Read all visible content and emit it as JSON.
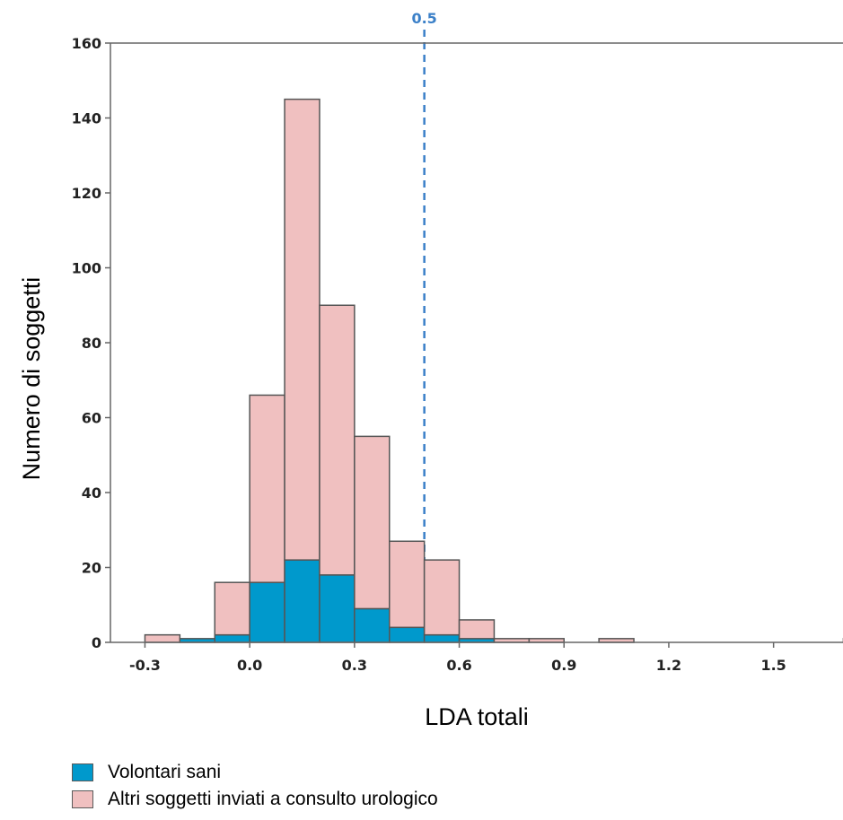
{
  "chart_data": {
    "type": "bar",
    "xlabel": "LDA totali",
    "ylabel": "Numero di soggetti",
    "xlim": [
      -0.35,
      1.7
    ],
    "ylim": [
      0,
      160
    ],
    "xticks": [
      -0.3,
      0.0,
      0.3,
      0.6,
      0.9,
      1.2,
      1.5
    ],
    "xtick_labels": [
      "-0.3",
      "0.0",
      "0.3",
      "0.6",
      "0.9",
      "1.2",
      "1.5"
    ],
    "yticks": [
      0,
      20,
      40,
      60,
      80,
      100,
      120,
      140,
      160
    ],
    "ytick_labels": [
      "0",
      "20",
      "40",
      "60",
      "80",
      "100",
      "120",
      "140",
      "160"
    ],
    "grid": false,
    "stacked": true,
    "bin_width": 0.1,
    "bins": [
      -0.3,
      -0.2,
      -0.1,
      0.0,
      0.1,
      0.2,
      0.3,
      0.4,
      0.5,
      0.6,
      0.7,
      0.8,
      1.0,
      1.7
    ],
    "series": [
      {
        "name": "Volontari sani",
        "color": "#0099cc",
        "values": [
          0,
          1,
          2,
          16,
          22,
          18,
          9,
          4,
          2,
          1,
          0,
          0,
          0,
          0
        ]
      },
      {
        "name": "Altri soggetti inviati a consulto urologico",
        "color": "#f0c0c0",
        "values": [
          2,
          0,
          14,
          50,
          123,
          72,
          46,
          23,
          20,
          5,
          1,
          1,
          1,
          1
        ]
      }
    ],
    "reference_line": {
      "x": 0.5,
      "label": "0.5",
      "color": "#3b80c8"
    },
    "annotations": [
      {
        "x": 1.7,
        "text": "*"
      }
    ],
    "legend_position": "bottom-left"
  }
}
